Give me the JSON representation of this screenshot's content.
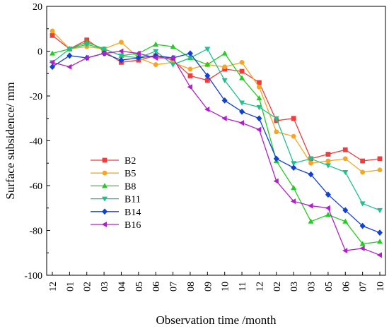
{
  "chart_data": {
    "type": "line",
    "xlabel": "Observation time /month",
    "ylabel": "Surface subsidence/ mm",
    "categories": [
      "12",
      "01",
      "02",
      "03",
      "04",
      "05",
      "06",
      "07",
      "08",
      "09",
      "10",
      "11",
      "12",
      "02",
      "03",
      "03",
      "05",
      "06",
      "07",
      "10"
    ],
    "ylim": [
      -100,
      20
    ],
    "yticks": [
      20,
      0,
      -20,
      -40,
      -60,
      -80,
      -100
    ],
    "grid": false,
    "legend_position": "left-center",
    "series": [
      {
        "name": "B2",
        "color": "#f03c3c",
        "marker": "square",
        "values": [
          7,
          1,
          5,
          0,
          -5,
          -4,
          -2,
          -4,
          -11,
          -13,
          -8,
          -9,
          -14,
          -31,
          -30,
          -48,
          -46,
          -44,
          -49,
          -48
        ]
      },
      {
        "name": "B5",
        "color": "#f5a623",
        "marker": "circle",
        "values": [
          9,
          1,
          2,
          1,
          4,
          -3,
          -6,
          -5,
          -8,
          -6,
          -7,
          -5,
          -16,
          -36,
          -38,
          -50,
          -49,
          -48,
          -54,
          -53
        ]
      },
      {
        "name": "B8",
        "color": "#22cc22",
        "marker": "triangle-up",
        "values": [
          -1,
          1,
          4,
          1,
          -2,
          -1,
          3,
          2,
          -3,
          -6,
          -1,
          -12,
          -21,
          -49,
          -61,
          -76,
          -73,
          -76,
          -86,
          -85
        ]
      },
      {
        "name": "B11",
        "color": "#1fbf8f",
        "marker": "triangle-down",
        "values": [
          -5,
          1,
          3,
          1,
          -2,
          -3,
          0,
          -6,
          -3,
          1,
          -13,
          -23,
          -25,
          -30,
          -50,
          -48,
          -51,
          -54,
          -68,
          -71
        ]
      },
      {
        "name": "B14",
        "color": "#1040d8",
        "marker": "diamond",
        "values": [
          -7,
          -2,
          -3,
          -1,
          -4,
          -3,
          -2,
          -3,
          -1,
          -11,
          -22,
          -27,
          -30,
          -48,
          -52,
          -55,
          -64,
          -71,
          -78,
          -81
        ]
      },
      {
        "name": "B16",
        "color": "#b020c8",
        "marker": "triangle-left",
        "values": [
          -5,
          -7,
          -3,
          -1,
          0,
          -1,
          -3,
          -3,
          -16,
          -26,
          -30,
          -32,
          -35,
          -58,
          -67,
          -69,
          -70,
          -89,
          -88,
          -91
        ]
      }
    ]
  }
}
